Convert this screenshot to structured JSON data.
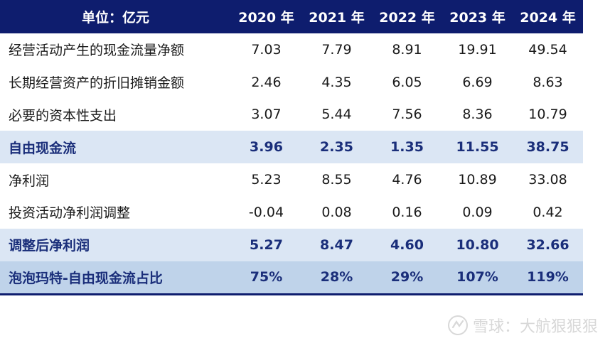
{
  "table": {
    "header": [
      "单位：亿元",
      "2020 年",
      "2021 年",
      "2022 年",
      "2023 年",
      "2024 年"
    ],
    "rows": [
      {
        "label": "经营活动产生的现金流量净额",
        "values": [
          "7.03",
          "7.79",
          "8.91",
          "19.91",
          "49.54"
        ],
        "style": "normal"
      },
      {
        "label": "长期经营资产的折旧摊销金额",
        "values": [
          "2.46",
          "4.35",
          "6.05",
          "6.69",
          "8.63"
        ],
        "style": "normal"
      },
      {
        "label": "必要的资本性支出",
        "values": [
          "3.07",
          "5.44",
          "7.56",
          "8.36",
          "10.79"
        ],
        "style": "normal"
      },
      {
        "label": "自由现金流",
        "values": [
          "3.96",
          "2.35",
          "1.35",
          "11.55",
          "38.75"
        ],
        "style": "hl"
      },
      {
        "label": "净利润",
        "values": [
          "5.23",
          "8.55",
          "4.76",
          "10.89",
          "33.08"
        ],
        "style": "normal"
      },
      {
        "label": "投资活动净利润调整",
        "values": [
          "-0.04",
          "0.08",
          "0.16",
          "0.09",
          "0.42"
        ],
        "style": "normal"
      },
      {
        "label": "调整后净利润",
        "values": [
          "5.27",
          "8.47",
          "4.60",
          "10.80",
          "32.66"
        ],
        "style": "hl"
      },
      {
        "label": "泡泡玛特-自由现金流占比",
        "values": [
          "75%",
          "28%",
          "29%",
          "107%",
          "119%"
        ],
        "style": "final"
      }
    ]
  },
  "watermark": {
    "text": "雪球：大航狠狠狠"
  }
}
